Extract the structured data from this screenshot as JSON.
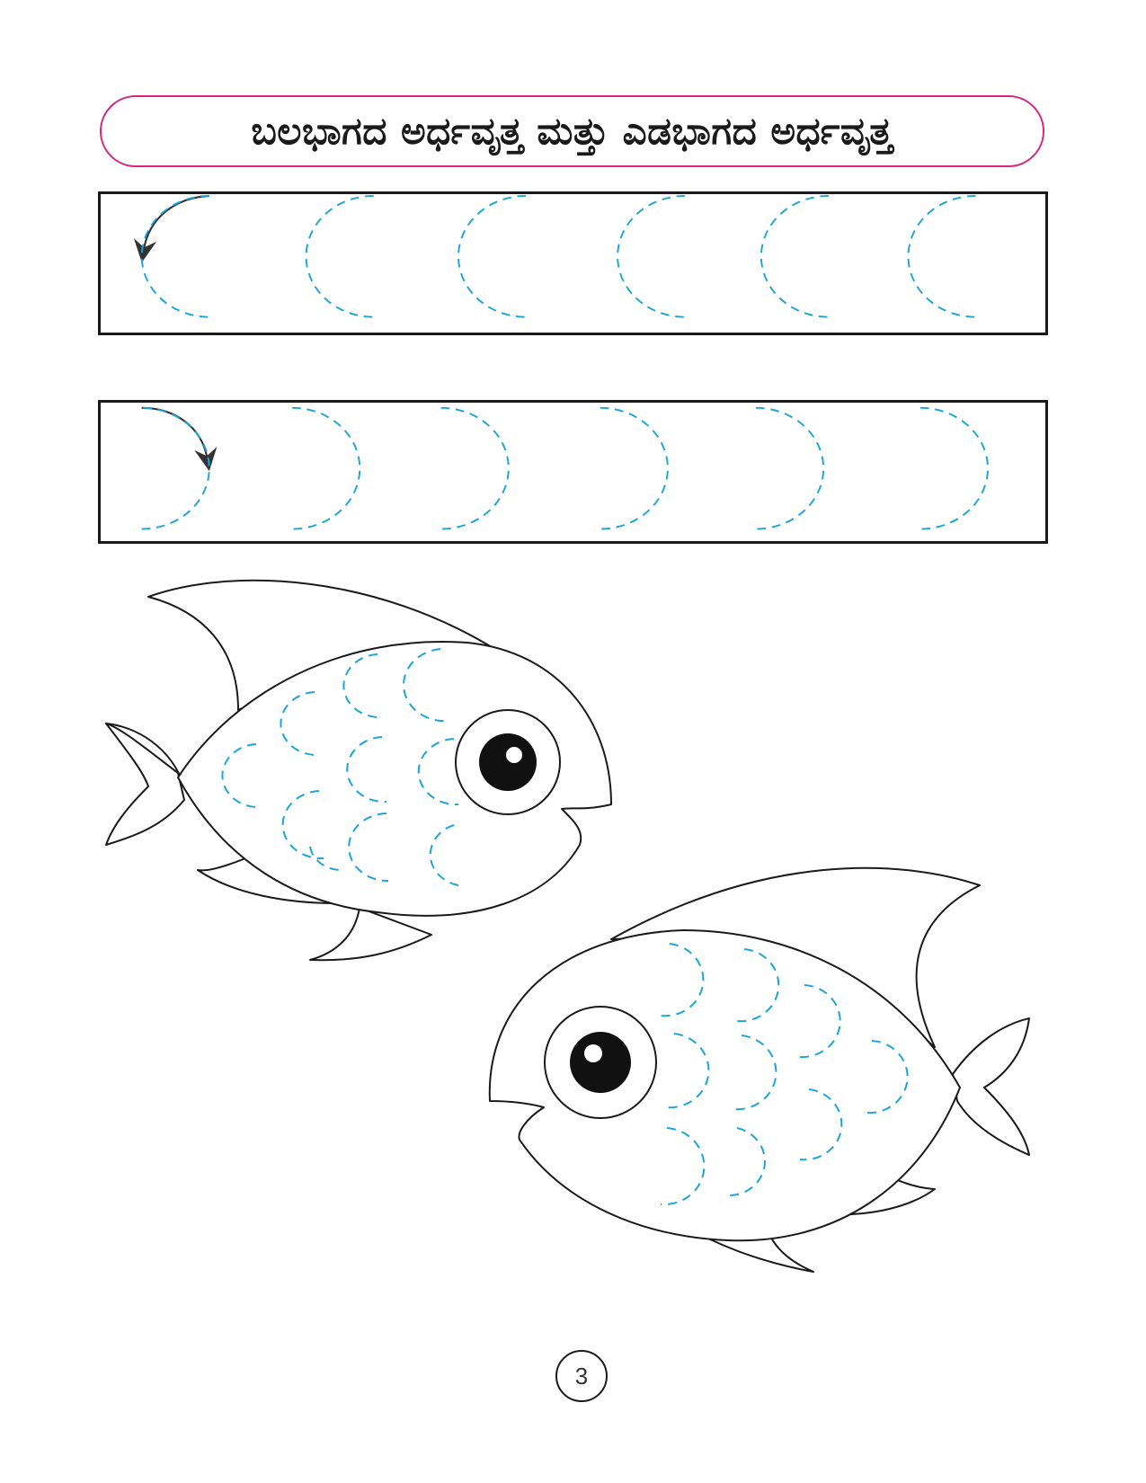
{
  "title": "ಬಲಭಾಗದ ಅರ್ಧವೃತ್ತ ಮತ್ತು ಎಡಭಾಗದ ಅರ್ಧವೃತ್ತ",
  "colors": {
    "title_border": "#d6267f",
    "dashed_trace": "#1ca4d8",
    "outline": "#1a1a1a"
  },
  "rows": [
    {
      "name": "left-half-circles",
      "count": 6,
      "guide": "arrow-icon-counterclockwise"
    },
    {
      "name": "right-half-circles",
      "count": 6,
      "guide": "arrow-icon-clockwise"
    }
  ],
  "fish": [
    {
      "facing": "right",
      "scale_rows": [
        2,
        3,
        3,
        2
      ]
    },
    {
      "facing": "left",
      "scale_rows": [
        2,
        3,
        3,
        2
      ]
    }
  ],
  "page_number": "3"
}
